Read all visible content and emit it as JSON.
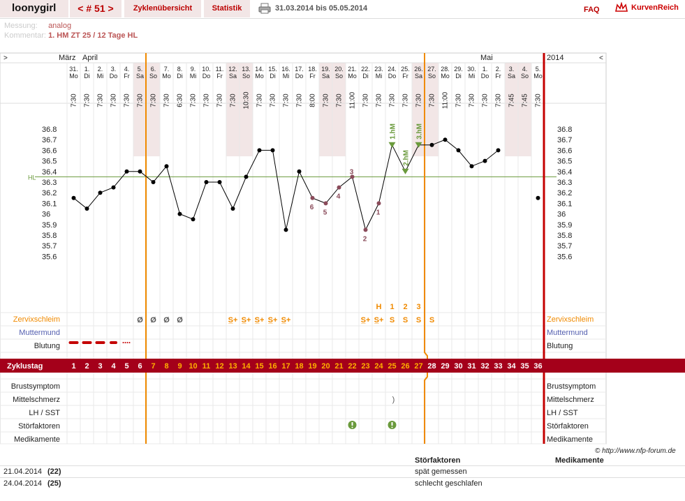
{
  "header": {
    "user": "loonygirl",
    "cycle_nav": "< # 51 >",
    "tab_overview": "Zyklenübersicht",
    "tab_stats": "Statistik",
    "date_range": "31.03.2014 bis 05.05.2014",
    "faq": "FAQ",
    "logo": "KurvenReich"
  },
  "meta": {
    "measure_key": "Messung:",
    "measure_val": "analog",
    "comment_key": "Kommentar:",
    "comment_val": "1. HM ZT 25 / 12 Tage HL"
  },
  "chart_data": {
    "type": "line",
    "nav_left": ">",
    "nav_right": "<",
    "year": "2014",
    "months": [
      {
        "label": "März",
        "day_index": 0
      },
      {
        "label": "April",
        "day_index": 1
      },
      {
        "label": "Mai",
        "day_index": 31
      }
    ],
    "dates": [
      "31.",
      "1.",
      "2.",
      "3.",
      "4.",
      "5.",
      "6.",
      "7.",
      "8.",
      "9.",
      "10.",
      "11.",
      "12.",
      "13.",
      "14.",
      "15.",
      "16.",
      "17.",
      "18.",
      "19.",
      "20.",
      "21.",
      "22.",
      "23.",
      "24.",
      "25.",
      "26.",
      "27.",
      "28.",
      "29.",
      "30.",
      "1.",
      "2.",
      "3.",
      "4.",
      "5."
    ],
    "weekdays": [
      "Mo",
      "Di",
      "Mi",
      "Do",
      "Fr",
      "Sa",
      "So",
      "Mo",
      "Di",
      "Mi",
      "Do",
      "Fr",
      "Sa",
      "So",
      "Mo",
      "Di",
      "Mi",
      "Do",
      "Fr",
      "Sa",
      "So",
      "Mo",
      "Di",
      "Mi",
      "Do",
      "Fr",
      "Sa",
      "So",
      "Mo",
      "Di",
      "Mi",
      "Do",
      "Fr",
      "Sa",
      "So",
      "Mo"
    ],
    "times": [
      "7:30",
      "7:30",
      "7:30",
      "7:30",
      "7:30",
      "7:30",
      "7:30",
      "7:30",
      "6:30",
      "7:30",
      "7:30",
      "7:30",
      "7:30",
      "10:30",
      "7:30",
      "7:30",
      "7:30",
      "7:30",
      "8:00",
      "7:30",
      "7:30",
      "11:00",
      "7:30",
      "7:30",
      "7:30",
      "7:30",
      "7:30",
      "7:30",
      "11:00",
      "7:30",
      "7:30",
      "7:30",
      "7:30",
      "7:45",
      "7:45",
      "7:30"
    ],
    "temps": [
      36.15,
      36.05,
      36.2,
      36.25,
      36.4,
      36.4,
      36.3,
      36.45,
      36.0,
      35.95,
      36.3,
      36.3,
      36.05,
      36.35,
      36.6,
      36.6,
      35.85,
      36.4,
      36.15,
      36.1,
      36.25,
      36.35,
      35.85,
      36.1,
      36.65,
      36.4,
      36.65,
      36.65,
      36.7,
      36.6,
      36.45,
      36.5,
      36.6,
      null,
      null,
      36.15
    ],
    "y_ticks": [
      "36.8",
      "36.7",
      "36.6",
      "36.5",
      "36.4",
      "36.3",
      "36.2",
      "36.1",
      "36",
      "35.9",
      "35.8",
      "35.7",
      "35.6"
    ],
    "ylim": [
      35.6,
      36.8
    ],
    "hl_label": "HL",
    "hl_value": 36.35,
    "count_labels": [
      {
        "day": 18,
        "text": "6"
      },
      {
        "day": 19,
        "text": "5"
      },
      {
        "day": 20,
        "text": "4"
      },
      {
        "day": 21,
        "text": "3"
      },
      {
        "day": 22,
        "text": "2"
      },
      {
        "day": 23,
        "text": "1"
      }
    ],
    "hm_labels": [
      {
        "day": 24,
        "text": "1.hM"
      },
      {
        "day": 25,
        "text": "2.hM"
      },
      {
        "day": 26,
        "text": "3.hM"
      }
    ],
    "cervix_codes": [
      "",
      "",
      "",
      "",
      "",
      "Ø",
      "Ø",
      "Ø",
      "Ø",
      "",
      "",
      "",
      "S̲+",
      "S̲+",
      "S̲+",
      "S̲+",
      "S̲+",
      "",
      "",
      "",
      "",
      "",
      "S̲+",
      "S̲+",
      "S",
      "S",
      "S",
      "S",
      "",
      "",
      "",
      "",
      "",
      "",
      "",
      ""
    ],
    "cervix_peak": [
      {
        "day": 23,
        "text": "H"
      },
      {
        "day": 24,
        "text": "1"
      },
      {
        "day": 25,
        "text": "2"
      },
      {
        "day": 26,
        "text": "3"
      }
    ],
    "cycle_days": [
      "1",
      "2",
      "3",
      "4",
      "5",
      "6",
      "7",
      "8",
      "9",
      "10",
      "11",
      "12",
      "13",
      "14",
      "15",
      "16",
      "17",
      "18",
      "19",
      "20",
      "21",
      "22",
      "23",
      "24",
      "25",
      "26",
      "27",
      "28",
      "29",
      "30",
      "31",
      "32",
      "33",
      "34",
      "35",
      "36"
    ],
    "bleeding": [
      "heavy",
      "heavy",
      "heavy",
      "medium",
      "spotting",
      "",
      "",
      "",
      "",
      "",
      "",
      "",
      "",
      "",
      "",
      "",
      "",
      "",
      "",
      "",
      "",
      "",
      "",
      "",
      "",
      "",
      "",
      "",
      "",
      "",
      "",
      "",
      "",
      "",
      "",
      ""
    ],
    "row_labels": {
      "cervix": "Zervixschleim",
      "cervix_pos": "Muttermund",
      "bleeding": "Blutung",
      "cycle": "Zyklustag",
      "breast": "Brustsymptom",
      "midpain": "Mittelschmerz",
      "lh": "LH / SST",
      "disturb": "Störfaktoren",
      "meds": "Medikamente"
    },
    "midpain_mark": {
      "day": 24,
      "text": ")"
    },
    "disturb_days": [
      21,
      24
    ],
    "colors": {
      "orange": "#f08a00",
      "red": "#c40000",
      "grid": "#e8e8e8",
      "hl": "#6a9a3c",
      "count": "#8a4b5a",
      "green": "#6a9a3c",
      "weekend": "#f2e6e6",
      "cycle_bar": "#a4001a"
    }
  },
  "footer": {
    "credit": "© http://www.nfp-forum.de",
    "disturb_head": "Störfaktoren",
    "meds_head": "Medikamente",
    "notes": [
      {
        "date": "21.04.2014",
        "day": "(22)",
        "text": "spät gemessen"
      },
      {
        "date": "24.04.2014",
        "day": "(25)",
        "text": "schlecht geschlafen"
      }
    ]
  }
}
